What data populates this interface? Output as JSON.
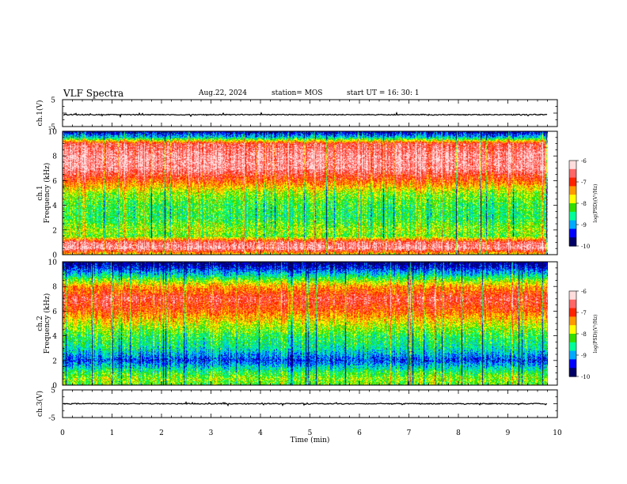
{
  "header": {
    "title": "VLF Spectra",
    "date": "Aug.22, 2024",
    "station": "station= MOS",
    "start": "start  UT  =   16: 30: 1"
  },
  "colors": {
    "scale": [
      "#000066",
      "#0000ff",
      "#00aaff",
      "#00ff99",
      "#33dd00",
      "#ffff00",
      "#ff9900",
      "#ff2200",
      "#ff6666",
      "#ffdddd"
    ],
    "trace": "#000000"
  },
  "chart_data": [
    {
      "type": "line",
      "panel": "ch1-waveform",
      "ylabel": "ch.1(V)",
      "ylim": [
        -5,
        5
      ],
      "yticks": [
        "5",
        "-5"
      ],
      "xlim": [
        0,
        10
      ],
      "trace_level": 0
    },
    {
      "type": "heatmap",
      "panel": "ch1-spectrogram",
      "ylabel": "ch.1\nFrequency (kHz)",
      "ylabel_lines": [
        "ch.1",
        "Frequency (kHz)"
      ],
      "ylim": [
        0,
        10
      ],
      "yticks": [
        "0",
        "2",
        "4",
        "6",
        "8",
        "10"
      ],
      "xlim": [
        0,
        10
      ],
      "data_end_min": 9.8,
      "colorbar": {
        "label": "log(PSD)(V²/Hz)",
        "range": [
          -10,
          -6
        ],
        "ticks": [
          "-6",
          "-7",
          "-8",
          "-9",
          "-10"
        ]
      },
      "profile_khz": [
        0,
        0.5,
        1.0,
        1.5,
        2.0,
        3.0,
        4.0,
        5.0,
        6.0,
        7.0,
        8.0,
        9.0,
        9.5,
        10.0
      ],
      "profile_level": [
        0.55,
        0.92,
        0.85,
        0.45,
        0.5,
        0.4,
        0.42,
        0.5,
        0.72,
        0.9,
        0.9,
        0.82,
        0.3,
        0.08
      ]
    },
    {
      "type": "heatmap",
      "panel": "ch2-spectrogram",
      "ylabel": "ch.2\nFrequency (kHz)",
      "ylabel_lines": [
        "ch.2",
        "Frequency (kHz)"
      ],
      "ylim": [
        0,
        10
      ],
      "yticks": [
        "0",
        "2",
        "4",
        "6",
        "8",
        "10"
      ],
      "xlim": [
        0,
        10
      ],
      "data_end_min": 9.8,
      "colorbar": {
        "label": "log(PSD)(V²/Hz)",
        "range": [
          -10,
          -6
        ],
        "ticks": [
          "-6",
          "-7",
          "-8",
          "-9",
          "-10"
        ]
      },
      "profile_khz": [
        0,
        0.5,
        1.0,
        1.5,
        2.0,
        3.0,
        4.0,
        5.0,
        6.0,
        7.0,
        8.0,
        9.0,
        9.5,
        10.0
      ],
      "profile_level": [
        0.45,
        0.5,
        0.42,
        0.3,
        0.18,
        0.35,
        0.42,
        0.55,
        0.72,
        0.82,
        0.65,
        0.3,
        0.15,
        0.05
      ]
    },
    {
      "type": "line",
      "panel": "ch3-waveform",
      "ylabel": "ch.3(V)",
      "ylim": [
        -5,
        5
      ],
      "yticks": [
        "5",
        "-5"
      ],
      "xlim": [
        0,
        10
      ],
      "trace_level": 0
    }
  ],
  "x_axis": {
    "label": "Time  (min)",
    "ticks": [
      "0",
      "1",
      "2",
      "3",
      "4",
      "5",
      "6",
      "7",
      "8",
      "9",
      "10"
    ]
  }
}
